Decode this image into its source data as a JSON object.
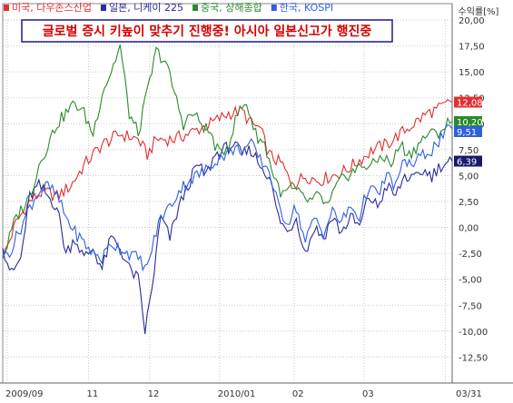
{
  "chart_data": {
    "type": "line",
    "title": "글로벌 증시 키높이 맞추기 진행중! 아시아 일본신고가 행진중",
    "y_unit": "수익률[%]",
    "ylim": [
      -15,
      20
    ],
    "yticks": [
      20,
      17.5,
      15,
      12.5,
      10,
      7.5,
      5,
      2.5,
      0,
      -2.5,
      -5,
      -7.5,
      -10,
      -12.5
    ],
    "ytick_labels": [
      "20,00",
      "17,50",
      "15,00",
      "12,50",
      "10,00",
      "7,50",
      "5,00",
      "2,50",
      "0,00",
      "-2,50",
      "-5,00",
      "-7,50",
      "-10,00",
      "-12,50"
    ],
    "x_tick_labels": [
      {
        "label": "2009/09",
        "index": 2
      },
      {
        "label": "11",
        "index": 38
      },
      {
        "label": "12",
        "index": 65
      },
      {
        "label": "2010/01",
        "index": 96
      },
      {
        "label": "02",
        "index": 129
      },
      {
        "label": "03",
        "index": 160
      },
      {
        "label": "03/31",
        "index": 196
      }
    ],
    "x_count": 200,
    "grid": true,
    "legend_position": "top-left",
    "series": [
      {
        "name": "미국, 다우존스산업",
        "color": "#e03030",
        "end_label": "12,08",
        "keypoints": [
          [
            0,
            -3
          ],
          [
            6,
            0.5
          ],
          [
            12,
            2.5
          ],
          [
            18,
            3.5
          ],
          [
            24,
            3
          ],
          [
            30,
            4
          ],
          [
            36,
            6
          ],
          [
            44,
            8
          ],
          [
            52,
            9
          ],
          [
            60,
            8.5
          ],
          [
            64,
            7
          ],
          [
            68,
            8.5
          ],
          [
            76,
            8.5
          ],
          [
            84,
            9.2
          ],
          [
            92,
            10
          ],
          [
            100,
            11
          ],
          [
            106,
            11.2
          ],
          [
            110,
            10
          ],
          [
            114,
            9.5
          ],
          [
            118,
            7
          ],
          [
            124,
            6
          ],
          [
            128,
            4
          ],
          [
            134,
            5
          ],
          [
            140,
            4.5
          ],
          [
            146,
            5
          ],
          [
            152,
            5.5
          ],
          [
            158,
            6.5
          ],
          [
            164,
            7.5
          ],
          [
            170,
            8
          ],
          [
            176,
            9
          ],
          [
            182,
            10
          ],
          [
            188,
            11
          ],
          [
            194,
            11.5
          ],
          [
            198,
            12.08
          ]
        ],
        "values": []
      },
      {
        "name": "일본, 니케이 225",
        "color": "#2a2a9c",
        "end_label": "6,39",
        "keypoints": [
          [
            0,
            -2
          ],
          [
            4,
            -4.5
          ],
          [
            8,
            -3
          ],
          [
            12,
            3
          ],
          [
            16,
            4
          ],
          [
            20,
            3
          ],
          [
            24,
            2
          ],
          [
            28,
            -2.5
          ],
          [
            32,
            -1
          ],
          [
            36,
            -3
          ],
          [
            40,
            -2
          ],
          [
            44,
            -4
          ],
          [
            48,
            -1
          ],
          [
            52,
            -2
          ],
          [
            56,
            -4
          ],
          [
            60,
            -5
          ],
          [
            63,
            -10
          ],
          [
            66,
            -6
          ],
          [
            70,
            1
          ],
          [
            74,
            -1
          ],
          [
            78,
            2
          ],
          [
            82,
            4
          ],
          [
            86,
            6
          ],
          [
            90,
            5
          ],
          [
            94,
            7
          ],
          [
            98,
            7.5
          ],
          [
            102,
            8
          ],
          [
            106,
            7
          ],
          [
            110,
            7.5
          ],
          [
            114,
            6
          ],
          [
            118,
            5
          ],
          [
            122,
            1
          ],
          [
            126,
            -0.5
          ],
          [
            130,
            1
          ],
          [
            134,
            -2.5
          ],
          [
            138,
            0
          ],
          [
            142,
            -1
          ],
          [
            146,
            1
          ],
          [
            150,
            -0.5
          ],
          [
            154,
            1
          ],
          [
            158,
            0
          ],
          [
            162,
            3
          ],
          [
            166,
            2
          ],
          [
            170,
            4
          ],
          [
            174,
            3
          ],
          [
            178,
            5
          ],
          [
            182,
            4.5
          ],
          [
            186,
            5.5
          ],
          [
            190,
            5
          ],
          [
            194,
            6
          ],
          [
            198,
            6.39
          ]
        ],
        "values": []
      },
      {
        "name": "중국, 상해종합",
        "color": "#2a8a2a",
        "end_label": "10,20",
        "keypoints": [
          [
            0,
            -3
          ],
          [
            6,
            1
          ],
          [
            12,
            3
          ],
          [
            16,
            6
          ],
          [
            20,
            8
          ],
          [
            24,
            10
          ],
          [
            28,
            11
          ],
          [
            32,
            12
          ],
          [
            36,
            11
          ],
          [
            40,
            9
          ],
          [
            44,
            13
          ],
          [
            48,
            15
          ],
          [
            52,
            17.5
          ],
          [
            56,
            11
          ],
          [
            60,
            9
          ],
          [
            64,
            13
          ],
          [
            68,
            17
          ],
          [
            72,
            16
          ],
          [
            76,
            13
          ],
          [
            80,
            10
          ],
          [
            84,
            11
          ],
          [
            88,
            10
          ],
          [
            92,
            9
          ],
          [
            96,
            7
          ],
          [
            100,
            8
          ],
          [
            104,
            11
          ],
          [
            108,
            12
          ],
          [
            112,
            9
          ],
          [
            116,
            8
          ],
          [
            120,
            5
          ],
          [
            124,
            3
          ],
          [
            128,
            4
          ],
          [
            132,
            3
          ],
          [
            136,
            2.5
          ],
          [
            140,
            3
          ],
          [
            144,
            2
          ],
          [
            148,
            4
          ],
          [
            152,
            5
          ],
          [
            156,
            5.5
          ],
          [
            160,
            6
          ],
          [
            164,
            6
          ],
          [
            168,
            7
          ],
          [
            172,
            6
          ],
          [
            176,
            8
          ],
          [
            180,
            7
          ],
          [
            184,
            8
          ],
          [
            188,
            9
          ],
          [
            192,
            9
          ],
          [
            198,
            10.2
          ]
        ],
        "values": []
      },
      {
        "name": "한국, KOSPI",
        "color": "#2f5fe0",
        "end_label": "9,51",
        "keypoints": [
          [
            0,
            -3
          ],
          [
            4,
            -2
          ],
          [
            8,
            0
          ],
          [
            12,
            2
          ],
          [
            16,
            3.5
          ],
          [
            20,
            4
          ],
          [
            24,
            3
          ],
          [
            28,
            1
          ],
          [
            32,
            -0.5
          ],
          [
            36,
            -1.5
          ],
          [
            40,
            -2.5
          ],
          [
            44,
            -3
          ],
          [
            48,
            -1.5
          ],
          [
            52,
            -2
          ],
          [
            56,
            -2.5
          ],
          [
            60,
            -3
          ],
          [
            64,
            -4
          ],
          [
            66,
            -2
          ],
          [
            70,
            1
          ],
          [
            74,
            2
          ],
          [
            78,
            3.5
          ],
          [
            82,
            4.5
          ],
          [
            86,
            5
          ],
          [
            90,
            5.5
          ],
          [
            94,
            6.5
          ],
          [
            98,
            7
          ],
          [
            102,
            7.5
          ],
          [
            106,
            7.5
          ],
          [
            110,
            8
          ],
          [
            114,
            6.5
          ],
          [
            118,
            5.5
          ],
          [
            122,
            2
          ],
          [
            126,
            0.5
          ],
          [
            130,
            2
          ],
          [
            134,
            -1.5
          ],
          [
            138,
            1
          ],
          [
            142,
            -0.5
          ],
          [
            146,
            1.5
          ],
          [
            150,
            0.5
          ],
          [
            154,
            2
          ],
          [
            158,
            1
          ],
          [
            162,
            4
          ],
          [
            166,
            3
          ],
          [
            170,
            5
          ],
          [
            174,
            4
          ],
          [
            178,
            6.5
          ],
          [
            182,
            6
          ],
          [
            186,
            7
          ],
          [
            190,
            7.5
          ],
          [
            194,
            8.5
          ],
          [
            198,
            9.51
          ]
        ],
        "values": []
      }
    ]
  }
}
